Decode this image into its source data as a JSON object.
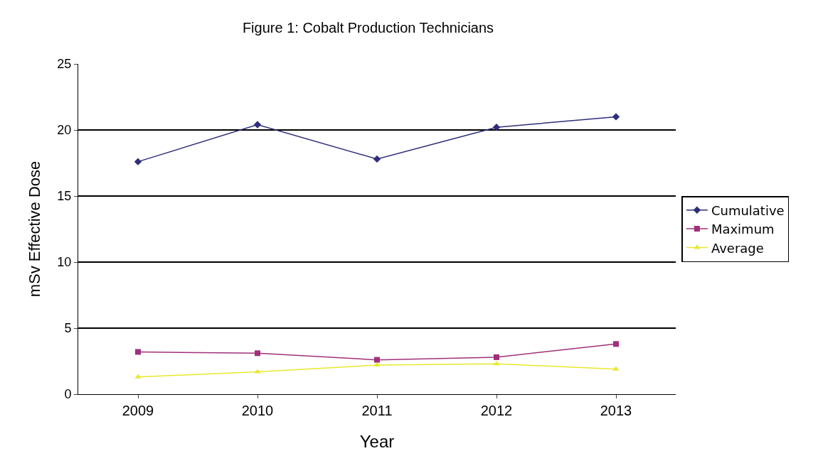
{
  "chart_data": {
    "type": "line",
    "title": "Figure 1: Cobalt Production Technicians",
    "xlabel": "Year",
    "ylabel": "mSv Effective Dose",
    "categories": [
      "2009",
      "2010",
      "2011",
      "2012",
      "2013"
    ],
    "series": [
      {
        "name": "Cumulative",
        "color": "#2e2e7a",
        "marker": "diamond",
        "values": [
          17.6,
          20.4,
          17.8,
          20.2,
          21.0
        ]
      },
      {
        "name": "Maximum",
        "color": "#a0307a",
        "marker": "square",
        "values": [
          3.2,
          3.1,
          2.6,
          2.8,
          3.8
        ]
      },
      {
        "name": "Average",
        "color": "#e8e830",
        "marker": "triangle",
        "values": [
          1.3,
          1.7,
          2.2,
          2.3,
          1.9
        ]
      }
    ],
    "ylim": [
      0,
      25
    ],
    "yticks": [
      0,
      5,
      10,
      15,
      20,
      25
    ],
    "grid": "y",
    "legend": "right",
    "line_style": "solid"
  }
}
